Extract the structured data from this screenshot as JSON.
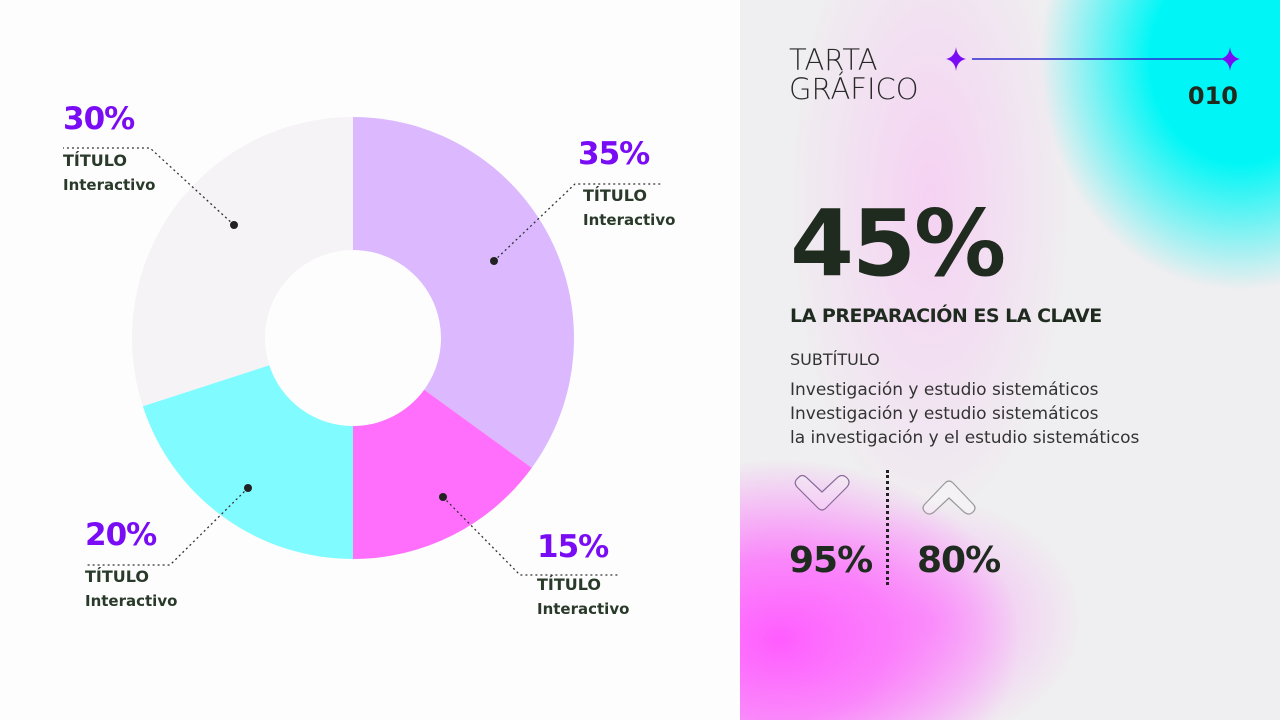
{
  "chart_data": {
    "type": "pie",
    "donut": true,
    "categories": [
      "TÍTULO Interactivo",
      "TÍTULO Interactivo",
      "TÍTULO Interactivo",
      "TÍTULO Interactivo"
    ],
    "values": [
      35,
      15,
      20,
      30
    ],
    "colors": [
      "#dcb9ff",
      "#ff6ffc",
      "#80fbff",
      "#f5f3f5"
    ],
    "labels": [
      {
        "pct": "35%",
        "title": "TÍTULO",
        "sub": "Interactivo"
      },
      {
        "pct": "15%",
        "title": "TÍTULO",
        "sub": "Interactivo"
      },
      {
        "pct": "20%",
        "title": "TÍTULO",
        "sub": "Interactivo"
      },
      {
        "pct": "30%",
        "title": "TÍTULO",
        "sub": "Interactivo"
      }
    ]
  },
  "panel": {
    "title_line1": "TARTA",
    "title_line2": "GRÁFICO",
    "page_number": "010",
    "big_value": "45%",
    "heading": "LA PREPARACIÓN ES LA CLAVE",
    "subtitle": "SUBTÍTULO",
    "description": [
      "Investigación y estudio sistemáticos",
      "Investigación y estudio sistemáticos",
      "la investigación y el estudio sistemáticos"
    ],
    "stats": [
      {
        "icon": "chevron-down-icon",
        "value": "95%"
      },
      {
        "icon": "chevron-up-icon",
        "value": "80%"
      }
    ],
    "accent": "#7a0cf5"
  }
}
